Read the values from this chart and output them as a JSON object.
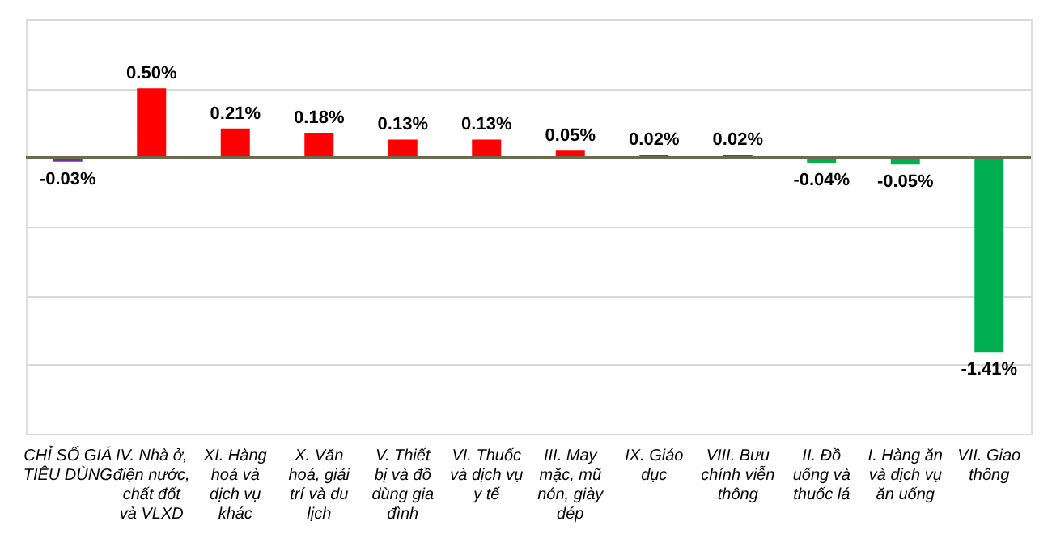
{
  "chart_data": {
    "type": "bar",
    "categories": [
      "CHỈ SỐ GIÁ TIÊU DÙNG",
      "IV. Nhà ở, điện nước, chất đốt và VLXD",
      "XI. Hàng hoá và dịch vụ khác",
      "X. Văn hoá, giải trí và du lịch",
      "V. Thiết bị và đồ dùng gia đình",
      "VI. Thuốc và dịch vụ y tế",
      "III. May mặc, mũ nón, giày dép",
      "IX. Giáo dục",
      "VIII. Bưu chính viễn thông",
      "II. Đồ uống và thuốc lá",
      "I. Hàng ăn và dịch vụ ăn uống",
      "VII. Giao thông"
    ],
    "values": [
      -0.03,
      0.5,
      0.21,
      0.18,
      0.13,
      0.13,
      0.05,
      0.02,
      0.02,
      -0.04,
      -0.05,
      -1.41
    ],
    "colors": [
      "#7030a0",
      "#ff0000",
      "#ff0000",
      "#ff0000",
      "#ff0000",
      "#ff0000",
      "#ff0000",
      "#ff0000",
      "#ff0000",
      "#00b050",
      "#00b050",
      "#00b050"
    ],
    "value_labels": [
      "-0.03%",
      "0.50%",
      "0.21%",
      "0.18%",
      "0.13%",
      "0.13%",
      "0.05%",
      "0.02%",
      "0.02%",
      "-0.04%",
      "-0.05%",
      "-1.41%"
    ],
    "ylim": [
      -2.0,
      1.0
    ],
    "yticks": [
      {
        "value": -2.0,
        "label": null
      },
      {
        "value": -1.5,
        "label": null
      },
      {
        "value": -1.0,
        "label": null
      },
      {
        "value": -0.5,
        "label": null
      },
      {
        "value": 0,
        "label": null
      },
      {
        "value": 0.5,
        "label": null
      },
      {
        "value": 1.0,
        "label": null
      }
    ],
    "grid": "y",
    "tick_labels": "x"
  }
}
